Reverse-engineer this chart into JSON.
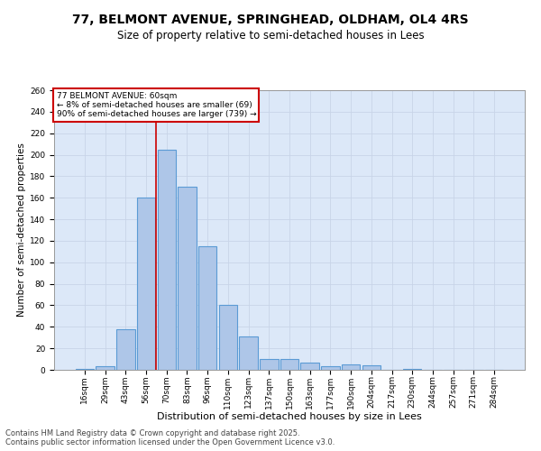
{
  "title": "77, BELMONT AVENUE, SPRINGHEAD, OLDHAM, OL4 4RS",
  "subtitle": "Size of property relative to semi-detached houses in Lees",
  "xlabel": "Distribution of semi-detached houses by size in Lees",
  "ylabel": "Number of semi-detached properties",
  "categories": [
    "16sqm",
    "29sqm",
    "43sqm",
    "56sqm",
    "70sqm",
    "83sqm",
    "96sqm",
    "110sqm",
    "123sqm",
    "137sqm",
    "150sqm",
    "163sqm",
    "177sqm",
    "190sqm",
    "204sqm",
    "217sqm",
    "230sqm",
    "244sqm",
    "257sqm",
    "271sqm",
    "284sqm"
  ],
  "values": [
    1,
    3,
    38,
    160,
    205,
    170,
    115,
    60,
    31,
    10,
    10,
    7,
    3,
    5,
    4,
    0,
    1,
    0,
    0,
    0,
    0
  ],
  "bar_color": "#aec6e8",
  "bar_edgecolor": "#5b9bd5",
  "bar_linewidth": 0.8,
  "redline_x": 3.5,
  "annotation_title": "77 BELMONT AVENUE: 60sqm",
  "annotation_line1": "← 8% of semi-detached houses are smaller (69)",
  "annotation_line2": "90% of semi-detached houses are larger (739) →",
  "annotation_box_color": "#ffffff",
  "annotation_box_edgecolor": "#cc0000",
  "redline_color": "#cc0000",
  "grid_color": "#c8d4e8",
  "background_color": "#dce8f8",
  "ylim": [
    0,
    260
  ],
  "yticks": [
    0,
    20,
    40,
    60,
    80,
    100,
    120,
    140,
    160,
    180,
    200,
    220,
    240,
    260
  ],
  "footer_line1": "Contains HM Land Registry data © Crown copyright and database right 2025.",
  "footer_line2": "Contains public sector information licensed under the Open Government Licence v3.0.",
  "title_fontsize": 10,
  "subtitle_fontsize": 8.5,
  "xlabel_fontsize": 8,
  "ylabel_fontsize": 7.5,
  "tick_fontsize": 6.5,
  "annot_fontsize": 6.5,
  "footer_fontsize": 6.0
}
